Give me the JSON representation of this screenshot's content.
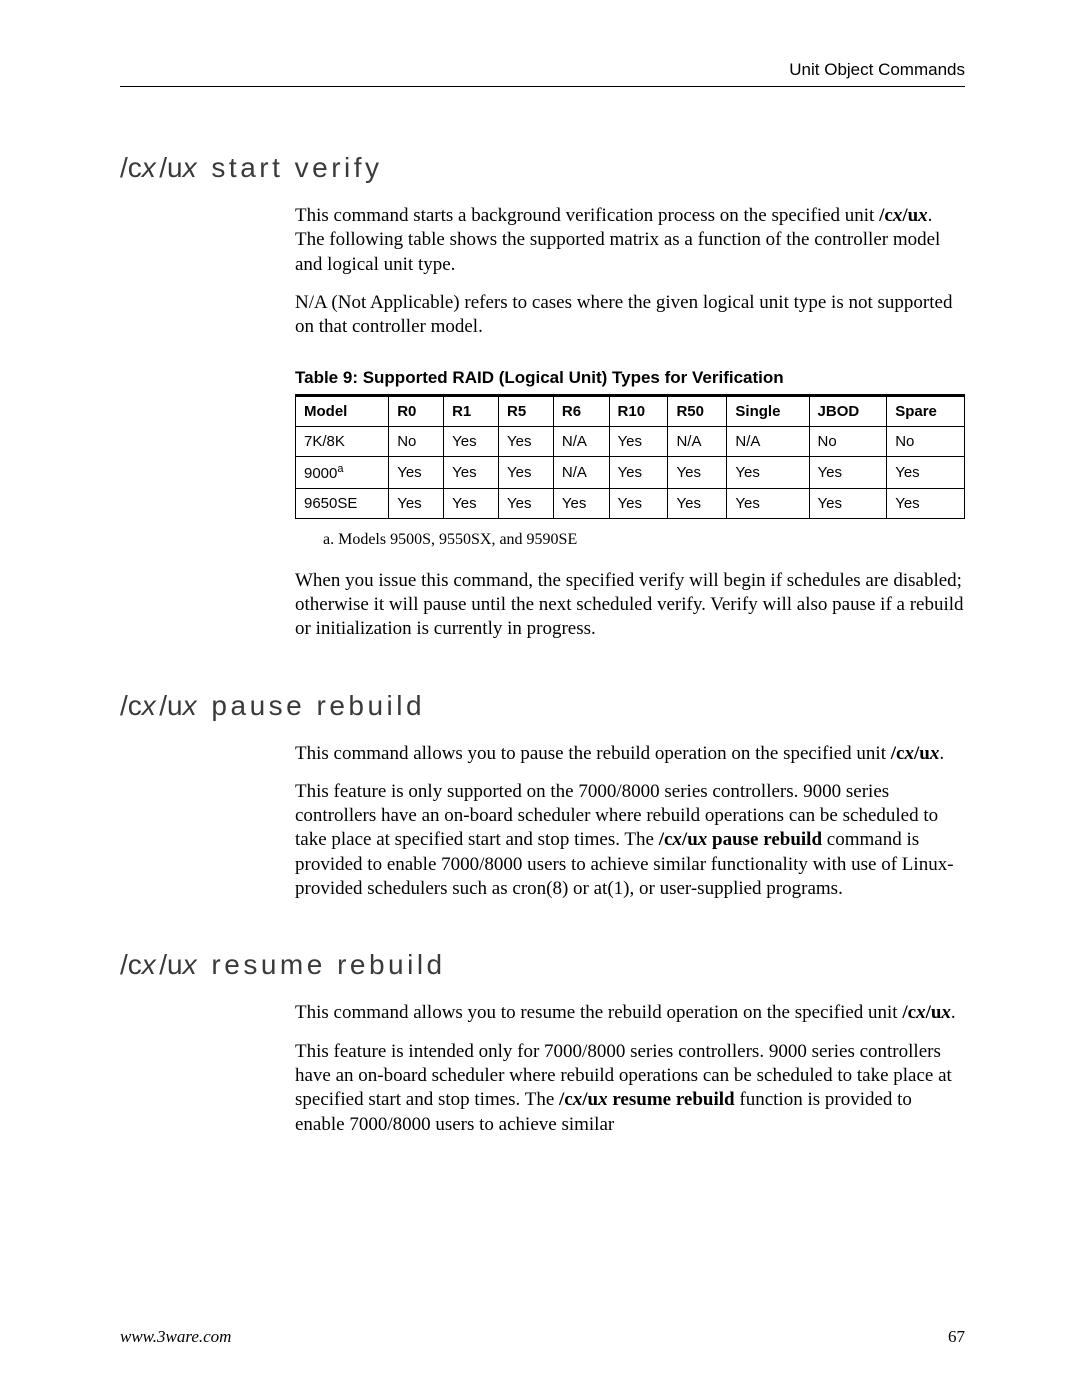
{
  "header": {
    "section_label": "Unit Object Commands"
  },
  "sections": {
    "start_verify": {
      "heading_cmd": "/cx/ux",
      "heading_rest": "start verify",
      "para1_a": "This command starts a background verification process on the specified unit ",
      "para1_b": ". The following table shows the supported matrix as a function of the controller model and logical unit type.",
      "cmd_ref": "/cx/ux",
      "para2": "N/A (Not Applicable) refers to cases where the given logical unit type is not supported on that controller model.",
      "table_caption": "Table 9: Supported RAID (Logical Unit) Types for Verification",
      "table": {
        "columns": [
          "Model",
          "R0",
          "R1",
          "R5",
          "R6",
          "R10",
          "R50",
          "Single",
          "JBOD",
          "Spare"
        ],
        "rows": [
          {
            "model": "7K/8K",
            "sup": "",
            "cells": [
              "No",
              "Yes",
              "Yes",
              "N/A",
              "Yes",
              "N/A",
              "N/A",
              "No",
              "No"
            ]
          },
          {
            "model": "9000",
            "sup": "a",
            "cells": [
              "Yes",
              "Yes",
              "Yes",
              "N/A",
              "Yes",
              "Yes",
              "Yes",
              "Yes",
              "Yes"
            ]
          },
          {
            "model": "9650SE",
            "sup": "",
            "cells": [
              "Yes",
              "Yes",
              "Yes",
              "Yes",
              "Yes",
              "Yes",
              "Yes",
              "Yes",
              "Yes"
            ]
          }
        ],
        "col_widths_pct": [
          12,
          8,
          8,
          8,
          8,
          9,
          9,
          12,
          12,
          12
        ],
        "border_color": "#000000",
        "header_font_weight": "bold",
        "font_family": "Arial",
        "font_size_pt": 11
      },
      "footnote": "a.  Models 9500S, 9550SX, and 9590SE",
      "para3": "When you issue this command, the specified verify will begin if schedules are disabled; otherwise it will pause until the next scheduled verify. Verify will also pause if a rebuild or initialization is currently in progress."
    },
    "pause_rebuild": {
      "heading_cmd": "/cx/ux",
      "heading_rest": "pause rebuild",
      "para1_a": "This command allows you to pause the rebuild operation on the specified unit ",
      "cmd_ref": "/cx/ux",
      "para1_b": ".",
      "para2_a": "This feature is only supported on the 7000/8000 series controllers. 9000 series controllers have an on-board scheduler where rebuild operations can be scheduled to take place at specified start and stop times. The ",
      "bold_cmd": "/cx/ux pause rebuild",
      "para2_b": " command is provided to enable 7000/8000 users to achieve similar functionality with use of Linux-provided schedulers such as cron(8) or at(1), or user-supplied programs."
    },
    "resume_rebuild": {
      "heading_cmd": "/cx/ux",
      "heading_rest": "resume rebuild",
      "para1_a": "This command allows you to resume the rebuild operation on the specified unit ",
      "cmd_ref": "/cx/ux",
      "para1_b": ".",
      "para2_a": "This feature is intended only for 7000/8000 series controllers. 9000 series controllers have an on-board scheduler where rebuild operations can be scheduled to take place at specified start and stop times. The ",
      "bold_cmd": "/cx/ux resume rebuild",
      "para2_b": " function is provided to enable 7000/8000 users to achieve similar"
    }
  },
  "footer": {
    "url": "www.3ware.com",
    "page_number": "67"
  },
  "colors": {
    "text": "#000000",
    "heading": "#3a3a3a",
    "rule": "#000000",
    "background": "#ffffff"
  }
}
